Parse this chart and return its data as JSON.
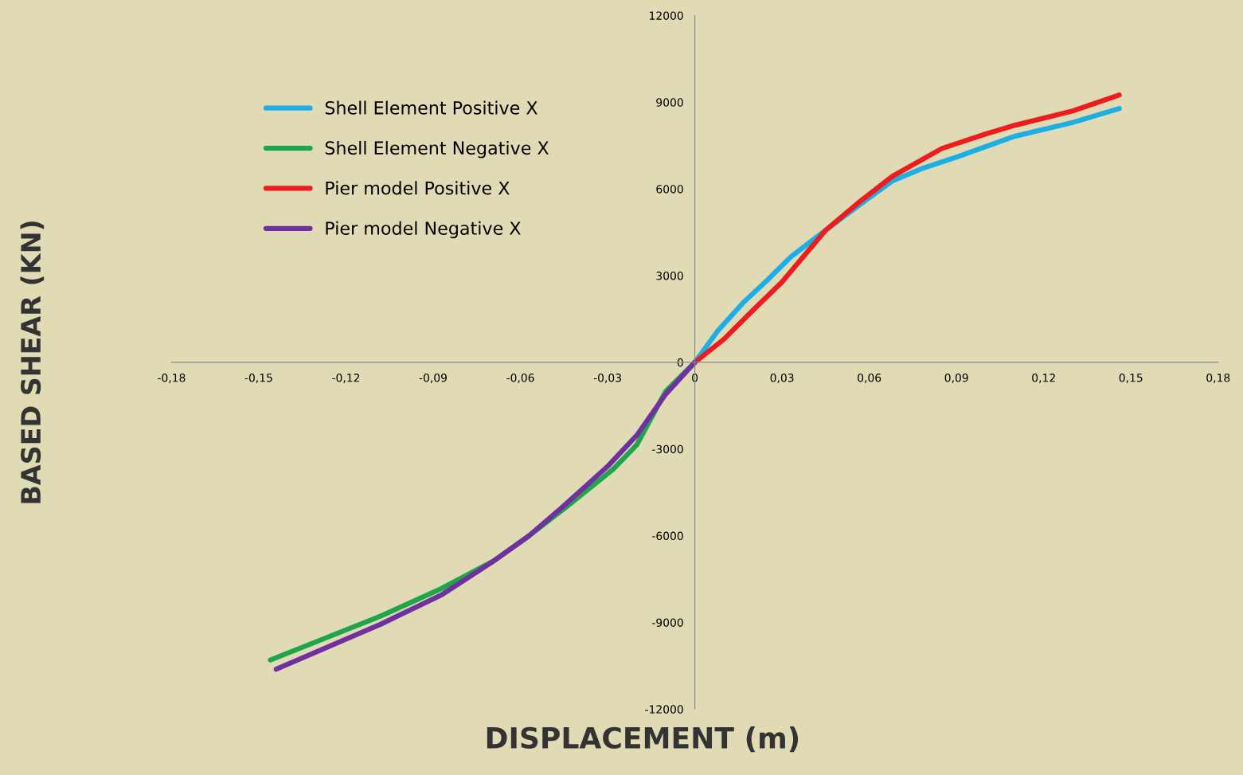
{
  "chart_data": {
    "type": "line",
    "xlabel": "DISPLACEMENT (m)",
    "ylabel": "BASED SHEAR (KN)",
    "xlim": [
      -0.18,
      0.18
    ],
    "ylim": [
      -12000,
      12000
    ],
    "xticks": [
      {
        "value": -0.18,
        "label": "-0,18"
      },
      {
        "value": -0.15,
        "label": "-0,15"
      },
      {
        "value": -0.12,
        "label": "-0,12"
      },
      {
        "value": -0.09,
        "label": "-0,09"
      },
      {
        "value": -0.06,
        "label": "-0,06"
      },
      {
        "value": -0.03,
        "label": "-0,03"
      },
      0,
      {
        "value": 0.03,
        "label": "0,03"
      },
      {
        "value": 0.06,
        "label": "0,06"
      },
      {
        "value": 0.09,
        "label": "0,09"
      },
      {
        "value": 0.12,
        "label": "0,12"
      },
      {
        "value": 0.15,
        "label": "0,15"
      },
      {
        "value": 0.18,
        "label": "0,18"
      }
    ],
    "yticks": [
      -12000,
      -9000,
      -6000,
      -3000,
      0,
      3000,
      6000,
      9000,
      12000
    ],
    "grid": false,
    "legend": "top left",
    "marker": "none",
    "line_style": "solid",
    "series": [
      {
        "name": "Shell Element Positive X",
        "color": "#1eaee6",
        "x": [
          0,
          0.008,
          0.017,
          0.025,
          0.033,
          0.045,
          0.056,
          0.068,
          0.078,
          0.09,
          0.11,
          0.13,
          0.146
        ],
        "values": [
          0,
          1100,
          2100,
          2850,
          3650,
          4570,
          5400,
          6280,
          6700,
          7100,
          7820,
          8300,
          8780
        ]
      },
      {
        "name": "Shell Element Negative X",
        "color": "#1fa64a",
        "x": [
          0,
          -0.01,
          -0.02,
          -0.028,
          -0.045,
          -0.057,
          -0.069,
          -0.087,
          -0.108,
          -0.146
        ],
        "values": [
          0,
          -1000,
          -2860,
          -3690,
          -5070,
          -6000,
          -6860,
          -7820,
          -8780,
          -10300
        ]
      },
      {
        "name": "Pier model Positive X",
        "color": "#ee1c1c",
        "x": [
          0,
          0.01,
          0.02,
          0.03,
          0.045,
          0.056,
          0.068,
          0.085,
          0.1,
          0.11,
          0.13,
          0.146
        ],
        "values": [
          0,
          800,
          1800,
          2780,
          4570,
          5500,
          6440,
          7400,
          7900,
          8200,
          8700,
          9250
        ]
      },
      {
        "name": "Pier model Negative X",
        "color": "#7030a0",
        "x": [
          0,
          -0.01,
          -0.02,
          -0.03,
          -0.045,
          -0.057,
          -0.069,
          -0.087,
          -0.108,
          -0.144
        ],
        "values": [
          0,
          -1100,
          -2530,
          -3600,
          -4960,
          -6000,
          -6860,
          -8040,
          -9060,
          -10620
        ]
      }
    ]
  }
}
